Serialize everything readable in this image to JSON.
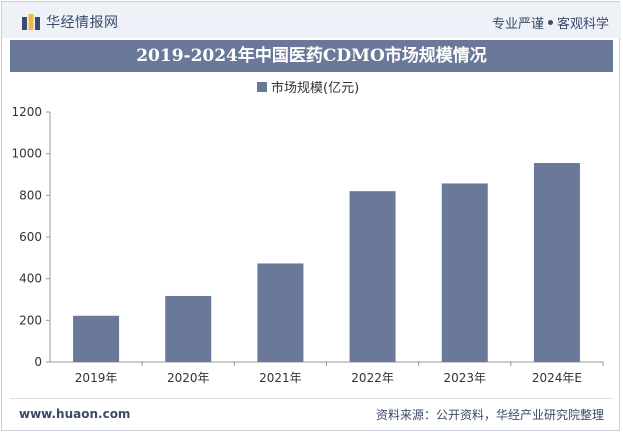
{
  "header": {
    "brand": "华经情报网",
    "slogan_left": "专业严谨",
    "slogan_right": "客观科学"
  },
  "colors": {
    "bar": "#6a7999",
    "title_bg": "#6a7999",
    "text": "#333333"
  },
  "chart_data": {
    "type": "bar",
    "title": "2019-2024年中国医药CDMO市场规模情况",
    "categories": [
      "2019年",
      "2020年",
      "2021年",
      "2022年",
      "2023年",
      "2024年E"
    ],
    "series": [
      {
        "name": "市场规模(亿元)",
        "values": [
          222,
          317,
          473,
          820,
          857,
          955
        ]
      }
    ],
    "xlabel": "",
    "ylabel": "",
    "ylim": [
      0,
      1200
    ],
    "yticks": [
      0,
      200,
      400,
      600,
      800,
      1000,
      1200
    ],
    "legend": "top-center",
    "grid": false
  },
  "footer": {
    "site": "www.huaon.com",
    "source": "资料来源：公开资料，华经产业研究院整理"
  }
}
